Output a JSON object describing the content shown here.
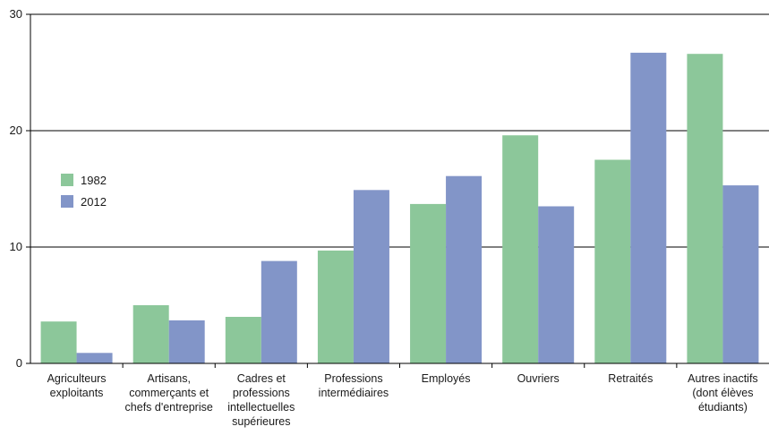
{
  "chart_data": {
    "type": "bar",
    "categories": [
      [
        "Agriculteurs",
        "exploitants"
      ],
      [
        "Artisans,",
        "commerçants et",
        "chefs d'entreprise"
      ],
      [
        "Cadres et",
        "professions",
        "intellectuelles",
        "supérieures"
      ],
      [
        "Professions",
        "intermédiaires"
      ],
      [
        "Employés"
      ],
      [
        "Ouvriers"
      ],
      [
        "Retraités"
      ],
      [
        "Autres inactifs",
        "(dont élèves",
        "étudiants)"
      ]
    ],
    "series": [
      {
        "name": "1982",
        "color": "#8cc79a",
        "values": [
          3.6,
          5.0,
          4.0,
          9.7,
          13.7,
          19.6,
          17.5,
          26.6
        ]
      },
      {
        "name": "2012",
        "color": "#8295c8",
        "values": [
          0.9,
          3.7,
          8.8,
          14.9,
          16.1,
          13.5,
          26.7,
          15.3
        ]
      }
    ],
    "yticks": [
      0,
      10,
      20,
      30
    ],
    "ylim": [
      0,
      30
    ],
    "grid": true,
    "legend": "left",
    "title": "",
    "xlabel": "",
    "ylabel": ""
  }
}
